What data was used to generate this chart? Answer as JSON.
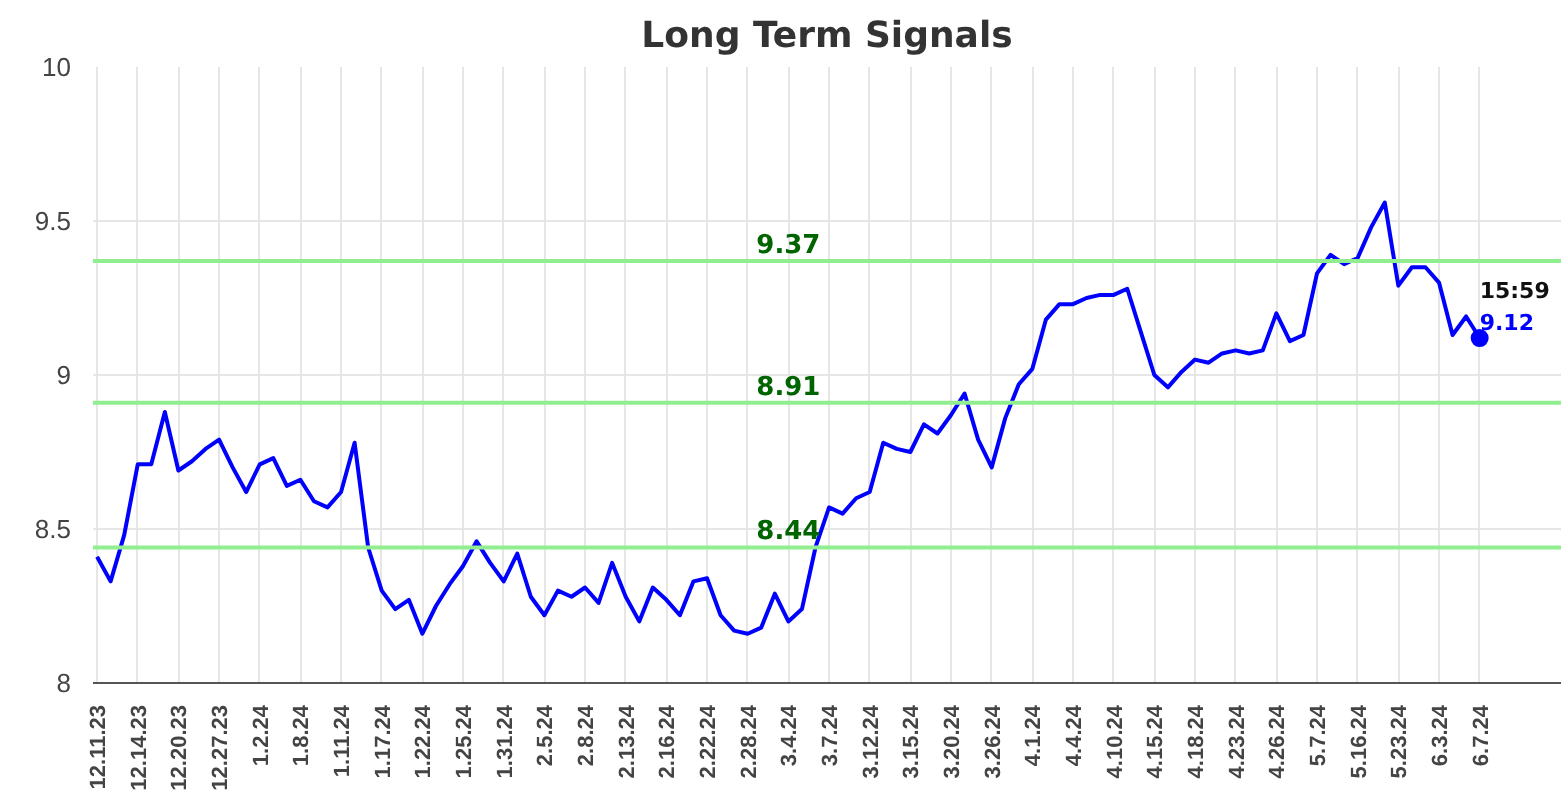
{
  "chart_data": {
    "type": "line",
    "title": "Long Term Signals",
    "categories": [
      "12.11.23",
      null,
      null,
      "12.14.23",
      null,
      null,
      "12.20.23",
      null,
      null,
      "12.27.23",
      null,
      null,
      "1.2.24",
      null,
      null,
      "1.8.24",
      null,
      null,
      "1.11.24",
      null,
      null,
      "1.17.24",
      null,
      null,
      "1.22.24",
      null,
      null,
      "1.25.24",
      null,
      null,
      "1.31.24",
      null,
      null,
      "2.5.24",
      null,
      null,
      "2.8.24",
      null,
      null,
      "2.13.24",
      null,
      null,
      "2.16.24",
      null,
      null,
      "2.22.24",
      null,
      null,
      "2.28.24",
      null,
      null,
      "3.4.24",
      null,
      null,
      "3.7.24",
      null,
      null,
      "3.12.24",
      null,
      null,
      "3.15.24",
      null,
      null,
      "3.20.24",
      null,
      null,
      "3.26.24",
      null,
      null,
      "4.1.24",
      null,
      null,
      "4.4.24",
      null,
      null,
      "4.10.24",
      null,
      null,
      "4.15.24",
      null,
      null,
      "4.18.24",
      null,
      null,
      "4.23.24",
      null,
      null,
      "4.26.24",
      null,
      null,
      "5.7.24",
      null,
      null,
      "5.16.24",
      null,
      null,
      "5.23.24",
      null,
      null,
      "6.3.24",
      null,
      null,
      "6.7.24"
    ],
    "series": [
      {
        "color": "#0000ff",
        "values": [
          8.41,
          8.33,
          8.48,
          8.71,
          8.71,
          8.88,
          8.69,
          8.72,
          8.76,
          8.79,
          8.7,
          8.62,
          8.71,
          8.73,
          8.64,
          8.66,
          8.59,
          8.57,
          8.62,
          8.78,
          8.44,
          8.3,
          8.24,
          8.27,
          8.16,
          8.25,
          8.32,
          8.38,
          8.46,
          8.39,
          8.33,
          8.42,
          8.28,
          8.22,
          8.3,
          8.28,
          8.31,
          8.26,
          8.39,
          8.28,
          8.2,
          8.31,
          8.27,
          8.22,
          8.33,
          8.34,
          8.22,
          8.17,
          8.16,
          8.18,
          8.29,
          8.2,
          8.24,
          8.44,
          8.57,
          8.55,
          8.6,
          8.62,
          8.78,
          8.76,
          8.75,
          8.84,
          8.81,
          8.87,
          8.94,
          8.79,
          8.7,
          8.86,
          8.97,
          9.02,
          9.18,
          9.23,
          9.23,
          9.25,
          9.26,
          9.26,
          9.28,
          9.14,
          9.0,
          8.96,
          9.01,
          9.05,
          9.04,
          9.07,
          9.08,
          9.07,
          9.08,
          9.2,
          9.11,
          9.13,
          9.33,
          9.39,
          9.36,
          9.38,
          9.48,
          9.56,
          9.29,
          9.35,
          9.35,
          9.3,
          9.13,
          9.19,
          9.12
        ]
      },
      {
        "type": "scatter",
        "color": "#0000ff",
        "x": [
          "6.7.24"
        ],
        "values": [
          9.12
        ],
        "value_labels": [
          "9.12"
        ],
        "marker": "circle"
      }
    ],
    "ylim": [
      8,
      10
    ],
    "yticks": [
      8,
      8.5,
      9,
      9.5,
      10
    ],
    "grid": true,
    "ref_lines": [
      {
        "axis": "y",
        "value": 9.37,
        "label": "9.37",
        "color": "#90ee90"
      },
      {
        "axis": "y",
        "value": 8.91,
        "label": "8.91",
        "color": "#90ee90"
      },
      {
        "axis": "y",
        "value": 8.44,
        "label": "8.44",
        "color": "#90ee90"
      }
    ],
    "annotations": [
      {
        "text": "15:59",
        "x": "6.7.24",
        "y": 9.12
      }
    ]
  }
}
